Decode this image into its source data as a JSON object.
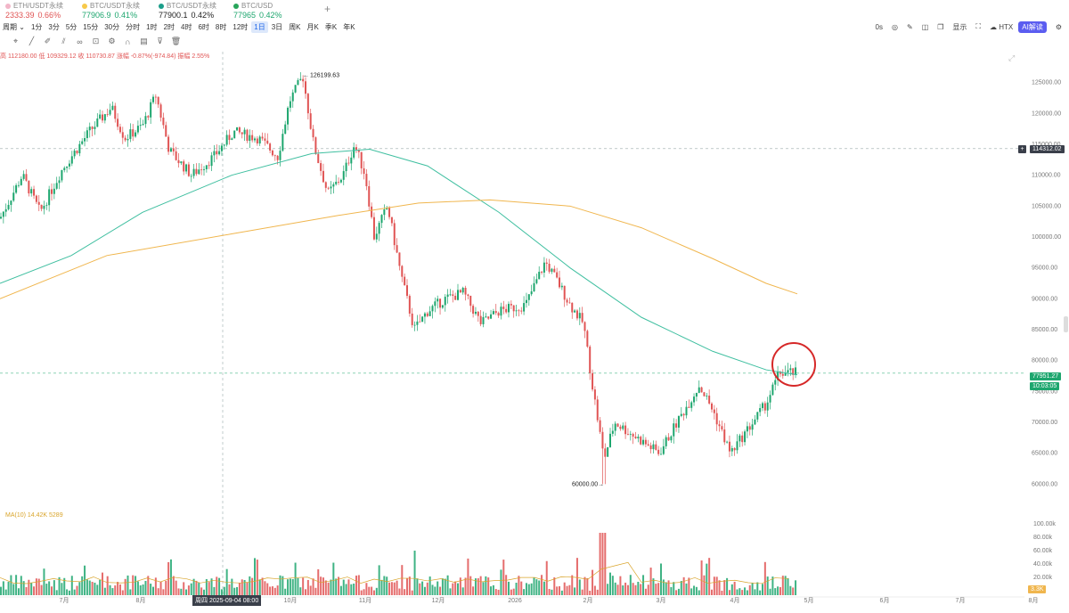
{
  "tickers": [
    {
      "name": "ETH/USDT永续",
      "price": "2333.39",
      "change": "0.66%",
      "color": "#e05454",
      "dot": "#f2b6c8"
    },
    {
      "name": "BTC/USDT永续",
      "price": "77906.9",
      "change": "0.41%",
      "color": "#1da66e",
      "dot": "#f7c94a"
    },
    {
      "name": "BTC/USDT永续",
      "price": "77900.1",
      "change": "0.42%",
      "color": "#222222",
      "dot": "#1b9e8a"
    },
    {
      "name": "BTC/USD",
      "price": "77965",
      "change": "0.42%",
      "color": "#1da66e",
      "dot": "#27a55a"
    }
  ],
  "add_tab": "+",
  "intervals": [
    "周期 ⌄",
    "1分",
    "3分",
    "5分",
    "15分",
    "30分",
    "分时",
    "1时",
    "2时",
    "4时",
    "6时",
    "8时",
    "12时",
    "1日",
    "3日",
    "周K",
    "月K",
    "季K",
    "年K"
  ],
  "active_interval": "1日",
  "right_tools": {
    "count": "0s",
    "display": "显示",
    "exchange": "HTX",
    "ai": "AI解读"
  },
  "ohlc_text": "高 112180.00  低 109329.12  收 110730.87  涨幅 -0.87%(-974.84)  振幅 2.55%",
  "volume_legend": "MA(10) 14.42K  5289",
  "price_axis": [
    "125000.00",
    "120000.00",
    "115000.00",
    "110000.00",
    "105000.00",
    "100000.00",
    "95000.00",
    "90000.00",
    "85000.00",
    "80000.00",
    "75000.00",
    "70000.00",
    "65000.00",
    "60000.00"
  ],
  "volume_axis": [
    "100.00k",
    "80.00k",
    "60.00k",
    "40.00k",
    "20.00k"
  ],
  "time_axis": [
    "7月",
    "8月",
    "9月",
    "10月",
    "11月",
    "12月",
    "2026",
    "2月",
    "3月",
    "4月",
    "5月",
    "6月",
    "7月",
    "8月"
  ],
  "crosshair_price": "114312.02",
  "crosshair_date": "周四 2025-09-04 08:00",
  "last_price": "77951.27",
  "countdown": "10:03:05",
  "volume_value": "3.3K",
  "high_marker": "126199.63",
  "low_marker": "60000.00",
  "colors": {
    "up": "#1da66e",
    "down": "#e05454",
    "ma_fast": "#3fbfa0",
    "ma_slow": "#f0b64e",
    "circle": "#d62828"
  },
  "chart_data": {
    "type": "candlestick",
    "ylim": [
      55000,
      130000
    ],
    "high": 126199.63,
    "low": 60000.0,
    "key_path": [
      [
        0,
        103000
      ],
      [
        25,
        110000
      ],
      [
        45,
        104000
      ],
      [
        70,
        111000
      ],
      [
        100,
        117000
      ],
      [
        125,
        121000
      ],
      [
        140,
        116000
      ],
      [
        160,
        118000
      ],
      [
        175,
        123000
      ],
      [
        190,
        114000
      ],
      [
        215,
        110000
      ],
      [
        240,
        113000
      ],
      [
        262,
        117000
      ],
      [
        290,
        116000
      ],
      [
        312,
        113000
      ],
      [
        325,
        122000
      ],
      [
        340,
        126000
      ],
      [
        352,
        115000
      ],
      [
        368,
        107000
      ],
      [
        385,
        110000
      ],
      [
        398,
        115000
      ],
      [
        410,
        110000
      ],
      [
        420,
        100000
      ],
      [
        435,
        105000
      ],
      [
        450,
        94000
      ],
      [
        465,
        85000
      ],
      [
        480,
        88000
      ],
      [
        500,
        90000
      ],
      [
        520,
        91000
      ],
      [
        540,
        86000
      ],
      [
        560,
        88000
      ],
      [
        590,
        89000
      ],
      [
        612,
        96000
      ],
      [
        625,
        93000
      ],
      [
        640,
        89000
      ],
      [
        655,
        86000
      ],
      [
        665,
        76000
      ],
      [
        678,
        64000
      ],
      [
        690,
        70000
      ],
      [
        720,
        67000
      ],
      [
        740,
        65000
      ],
      [
        760,
        70000
      ],
      [
        785,
        76000
      ],
      [
        800,
        72000
      ],
      [
        820,
        65000
      ],
      [
        840,
        69000
      ],
      [
        860,
        73000
      ],
      [
        875,
        78000
      ],
      [
        895,
        78000
      ]
    ],
    "ma_fast": [
      [
        0,
        92500
      ],
      [
        80,
        97000
      ],
      [
        160,
        104000
      ],
      [
        260,
        110000
      ],
      [
        350,
        113500
      ],
      [
        415,
        114200
      ],
      [
        480,
        111500
      ],
      [
        560,
        104000
      ],
      [
        640,
        95000
      ],
      [
        720,
        87000
      ],
      [
        800,
        81500
      ],
      [
        860,
        78500
      ],
      [
        895,
        77700
      ]
    ],
    "ma_slow": [
      [
        0,
        90000
      ],
      [
        120,
        97000
      ],
      [
        260,
        100500
      ],
      [
        380,
        103500
      ],
      [
        470,
        105500
      ],
      [
        550,
        106000
      ],
      [
        640,
        105000
      ],
      [
        720,
        101500
      ],
      [
        800,
        96500
      ],
      [
        860,
        92500
      ],
      [
        895,
        90800
      ]
    ]
  }
}
